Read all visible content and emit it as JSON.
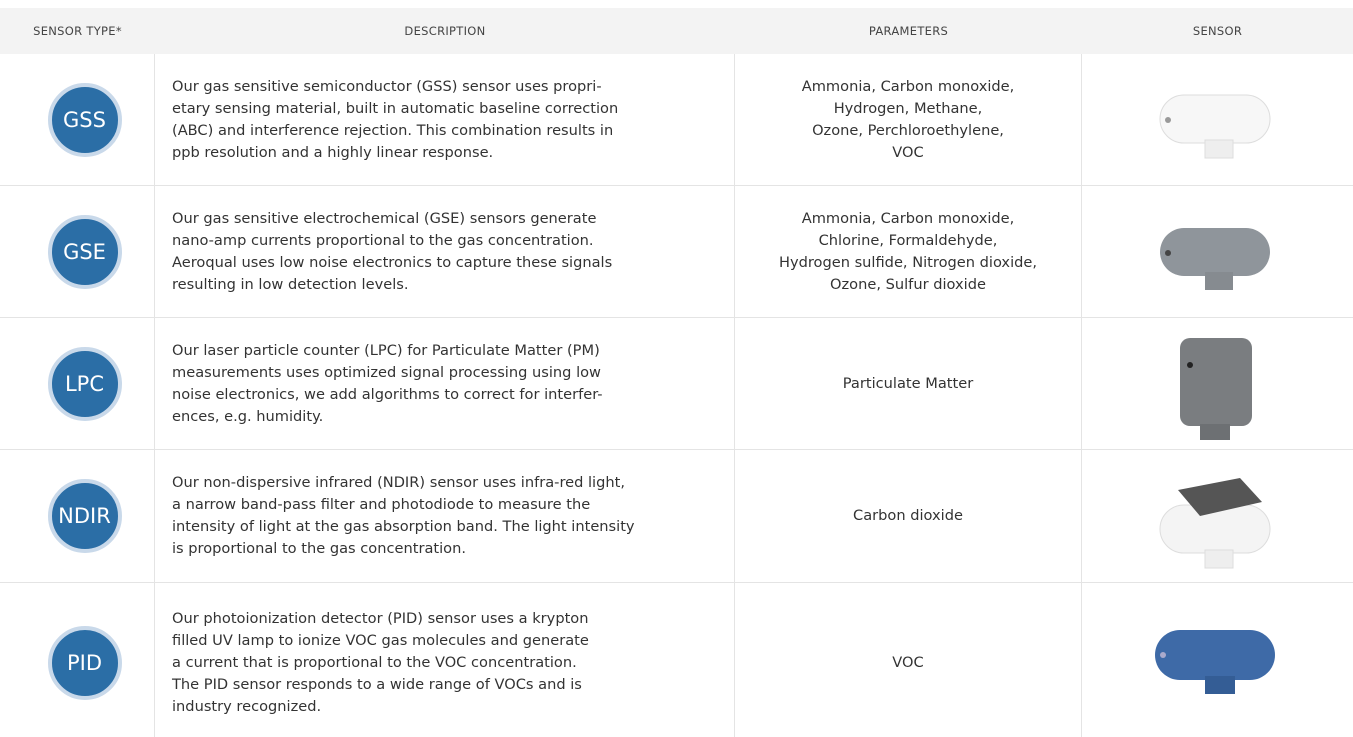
{
  "table": {
    "header": [
      "SENSOR TYPE*",
      "DESCRIPTION",
      "PARAMETERS",
      "SENSOR"
    ],
    "rows": [
      {
        "type": "GSS",
        "description": [
          "Our gas sensitive semiconductor (GSS) sensor uses propri-",
          "etary sensing material, built in automatic baseline correction",
          "(ABC) and interference rejection. This combination results in",
          "ppb resolution and a highly linear response."
        ],
        "parameters": [
          "Ammonia, Carbon monoxide,",
          "Hydrogen, Methane,",
          "Ozone, Perchloroethylene,",
          "VOC"
        ]
      },
      {
        "type": "GSE",
        "description": [
          "Our gas sensitive electrochemical (GSE) sensors generate",
          "nano-amp currents proportional to the gas concentration.",
          "Aeroqual uses low noise electronics to capture these signals",
          "resulting in low detection levels."
        ],
        "parameters": [
          "Ammonia, Carbon monoxide,",
          "Chlorine, Formaldehyde,",
          "Hydrogen sulfide, Nitrogen dioxide,",
          "Ozone, Sulfur dioxide"
        ]
      },
      {
        "type": "LPC",
        "description": [
          "Our laser particle counter (LPC) for Particulate Matter (PM)",
          "measurements uses optimized signal processing using low",
          "noise electronics, we add algorithms to correct for interfer-",
          "ences, e.g. humidity."
        ],
        "parameters": [
          "Particulate Matter"
        ]
      },
      {
        "type": "NDIR",
        "description": [
          "Our non-dispersive infrared (NDIR) sensor uses infra-red light,",
          "a narrow band-pass filter and photodiode to measure the",
          "intensity of light at the gas absorption band. The light intensity",
          "is proportional to the gas concentration."
        ],
        "parameters": [
          "Carbon dioxide"
        ]
      },
      {
        "type": "PID",
        "description": [
          "Our photoionization detector (PID) sensor uses a krypton",
          "filled UV lamp to ionize VOC gas molecules and generate",
          "a current that is proportional to the VOC concentration.",
          "The PID sensor responds to a wide range of VOCs and is",
          "industry recognized."
        ],
        "parameters": [
          "VOC"
        ]
      }
    ]
  }
}
